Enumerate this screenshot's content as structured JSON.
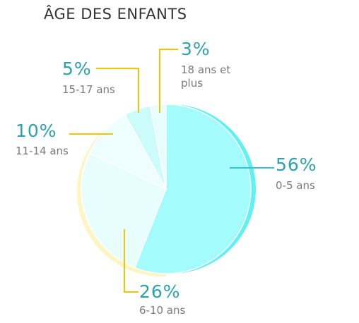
{
  "chart_data": {
    "type": "pie",
    "title": "ÂGE DES ENFANTS",
    "categories": [
      "0-5 ans",
      "6-10 ans",
      "11-14 ans",
      "15-17 ans",
      "18 ans et plus"
    ],
    "values": [
      56,
      26,
      10,
      5,
      3
    ],
    "value_labels": [
      "56%",
      "26%",
      "10%",
      "5%",
      "3%"
    ],
    "colors": [
      "#a3fbfb",
      "#e8fefe",
      "#eefdfd",
      "#ccfbfb",
      "#e8fefe"
    ]
  }
}
